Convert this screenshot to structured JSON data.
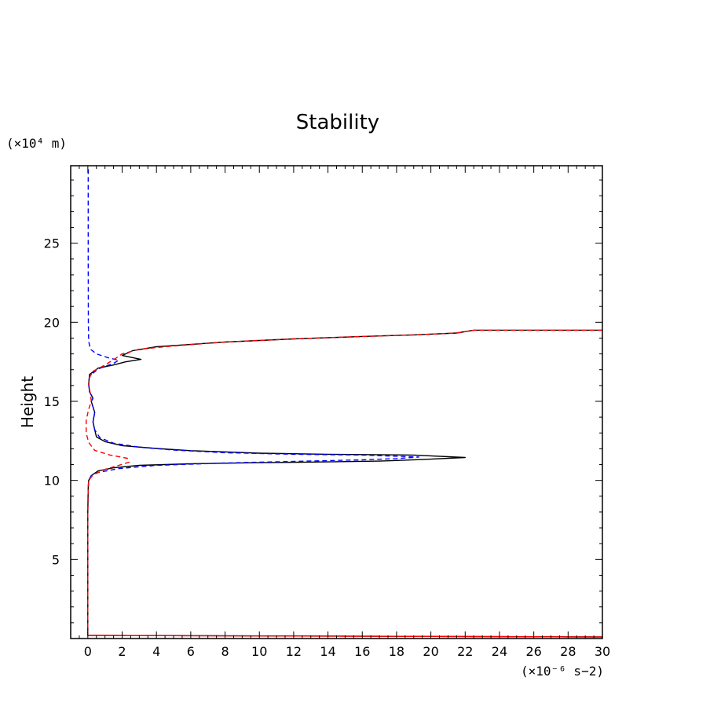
{
  "chart_data": {
    "type": "line",
    "title": "Stability",
    "xlabel": "",
    "ylabel": "Height",
    "x_unit": "(×10⁻⁶ s−2)",
    "y_unit": "(×10⁴ m)",
    "xlim": [
      -1,
      30
    ],
    "ylim": [
      0,
      29.9
    ],
    "x_ticks": [
      "0",
      "2",
      "4",
      "6",
      "8",
      "10",
      "12",
      "14",
      "16",
      "18",
      "20",
      "22",
      "24",
      "26",
      "28",
      "30"
    ],
    "y_ticks": [
      "5",
      "10",
      "15",
      "20",
      "25"
    ],
    "grid": false,
    "series": [
      {
        "color": "#000000",
        "dash": "solid",
        "points": [
          [
            0,
            0.2
          ],
          [
            30,
            0.1
          ],
          [
            0,
            0.2
          ],
          [
            0,
            8.0
          ],
          [
            0.02,
            9.5
          ],
          [
            0.05,
            10.0
          ],
          [
            0.2,
            10.3
          ],
          [
            0.6,
            10.6
          ],
          [
            1.5,
            10.8
          ],
          [
            3,
            10.95
          ],
          [
            6,
            11.05
          ],
          [
            10,
            11.12
          ],
          [
            14,
            11.17
          ],
          [
            17,
            11.22
          ],
          [
            19.5,
            11.32
          ],
          [
            22,
            11.45
          ],
          [
            19,
            11.6
          ],
          [
            14,
            11.65
          ],
          [
            10,
            11.72
          ],
          [
            6,
            11.88
          ],
          [
            4,
            12.02
          ],
          [
            2,
            12.2
          ],
          [
            1,
            12.45
          ],
          [
            0.5,
            12.75
          ],
          [
            0.4,
            13.2
          ],
          [
            0.3,
            13.7
          ],
          [
            0.4,
            14.3
          ],
          [
            0.2,
            15.0
          ],
          [
            0.3,
            15.2
          ],
          [
            0.1,
            15.6
          ],
          [
            0.05,
            16.1
          ],
          [
            0.1,
            16.7
          ],
          [
            0.6,
            17.1
          ],
          [
            1.5,
            17.3
          ],
          [
            2.2,
            17.5
          ],
          [
            3.1,
            17.65
          ],
          [
            2.0,
            17.9
          ],
          [
            2.6,
            18.2
          ],
          [
            4,
            18.45
          ],
          [
            8,
            18.75
          ],
          [
            12,
            18.95
          ],
          [
            16,
            19.1
          ],
          [
            19,
            19.2
          ],
          [
            21.5,
            19.32
          ],
          [
            22.5,
            19.5
          ],
          [
            30,
            19.5
          ]
        ]
      },
      {
        "color": "#0000ff",
        "dash": "dashed",
        "points": [
          [
            0,
            0.2
          ],
          [
            0,
            8.0
          ],
          [
            0.02,
            9.5
          ],
          [
            0.05,
            10.0
          ],
          [
            0.2,
            10.3
          ],
          [
            0.6,
            10.5
          ],
          [
            1.8,
            10.75
          ],
          [
            4,
            10.95
          ],
          [
            8,
            11.1
          ],
          [
            12,
            11.2
          ],
          [
            16,
            11.3
          ],
          [
            18,
            11.38
          ],
          [
            19.3,
            11.48
          ],
          [
            16,
            11.6
          ],
          [
            12,
            11.65
          ],
          [
            8,
            11.75
          ],
          [
            5,
            11.92
          ],
          [
            3,
            12.1
          ],
          [
            1.5,
            12.35
          ],
          [
            0.7,
            12.7
          ],
          [
            0.4,
            13.2
          ],
          [
            0.3,
            13.7
          ],
          [
            0.4,
            14.3
          ],
          [
            0.2,
            15.0
          ],
          [
            0.3,
            15.2
          ],
          [
            0.1,
            15.6
          ],
          [
            0.05,
            16.1
          ],
          [
            0.1,
            16.6
          ],
          [
            0.6,
            17.05
          ],
          [
            1.5,
            17.4
          ],
          [
            1.8,
            17.6
          ],
          [
            1.2,
            17.75
          ],
          [
            0.5,
            18.0
          ],
          [
            0.15,
            18.3
          ],
          [
            0.05,
            18.8
          ],
          [
            0.03,
            20
          ],
          [
            0.02,
            24
          ],
          [
            0.02,
            28
          ],
          [
            0.02,
            29.9
          ]
        ]
      },
      {
        "color": "#ff0000",
        "dash": "dashed",
        "points": [
          [
            0,
            0.2
          ],
          [
            15,
            0.15
          ],
          [
            30,
            0.1
          ],
          [
            0,
            0.2
          ],
          [
            0,
            8.0
          ],
          [
            0.02,
            9.5
          ],
          [
            0.05,
            10.0
          ],
          [
            0.3,
            10.35
          ],
          [
            1.0,
            10.7
          ],
          [
            1.8,
            10.95
          ],
          [
            2.4,
            11.15
          ],
          [
            2.3,
            11.4
          ],
          [
            1.3,
            11.6
          ],
          [
            0.4,
            11.9
          ],
          [
            0.05,
            12.4
          ],
          [
            -0.1,
            13.0
          ],
          [
            -0.1,
            13.8
          ],
          [
            0.05,
            14.5
          ],
          [
            0.2,
            15.0
          ],
          [
            0.15,
            15.5
          ],
          [
            0.05,
            16.0
          ],
          [
            0.1,
            16.5
          ],
          [
            0.3,
            16.9
          ],
          [
            1.0,
            17.3
          ],
          [
            1.6,
            17.7
          ],
          [
            2.0,
            18.0
          ],
          [
            3,
            18.3
          ],
          [
            5,
            18.5
          ],
          [
            8,
            18.75
          ],
          [
            12,
            18.95
          ],
          [
            16,
            19.1
          ],
          [
            19,
            19.2
          ],
          [
            21.5,
            19.32
          ],
          [
            22.5,
            19.5
          ],
          [
            30,
            19.5
          ]
        ]
      }
    ]
  }
}
